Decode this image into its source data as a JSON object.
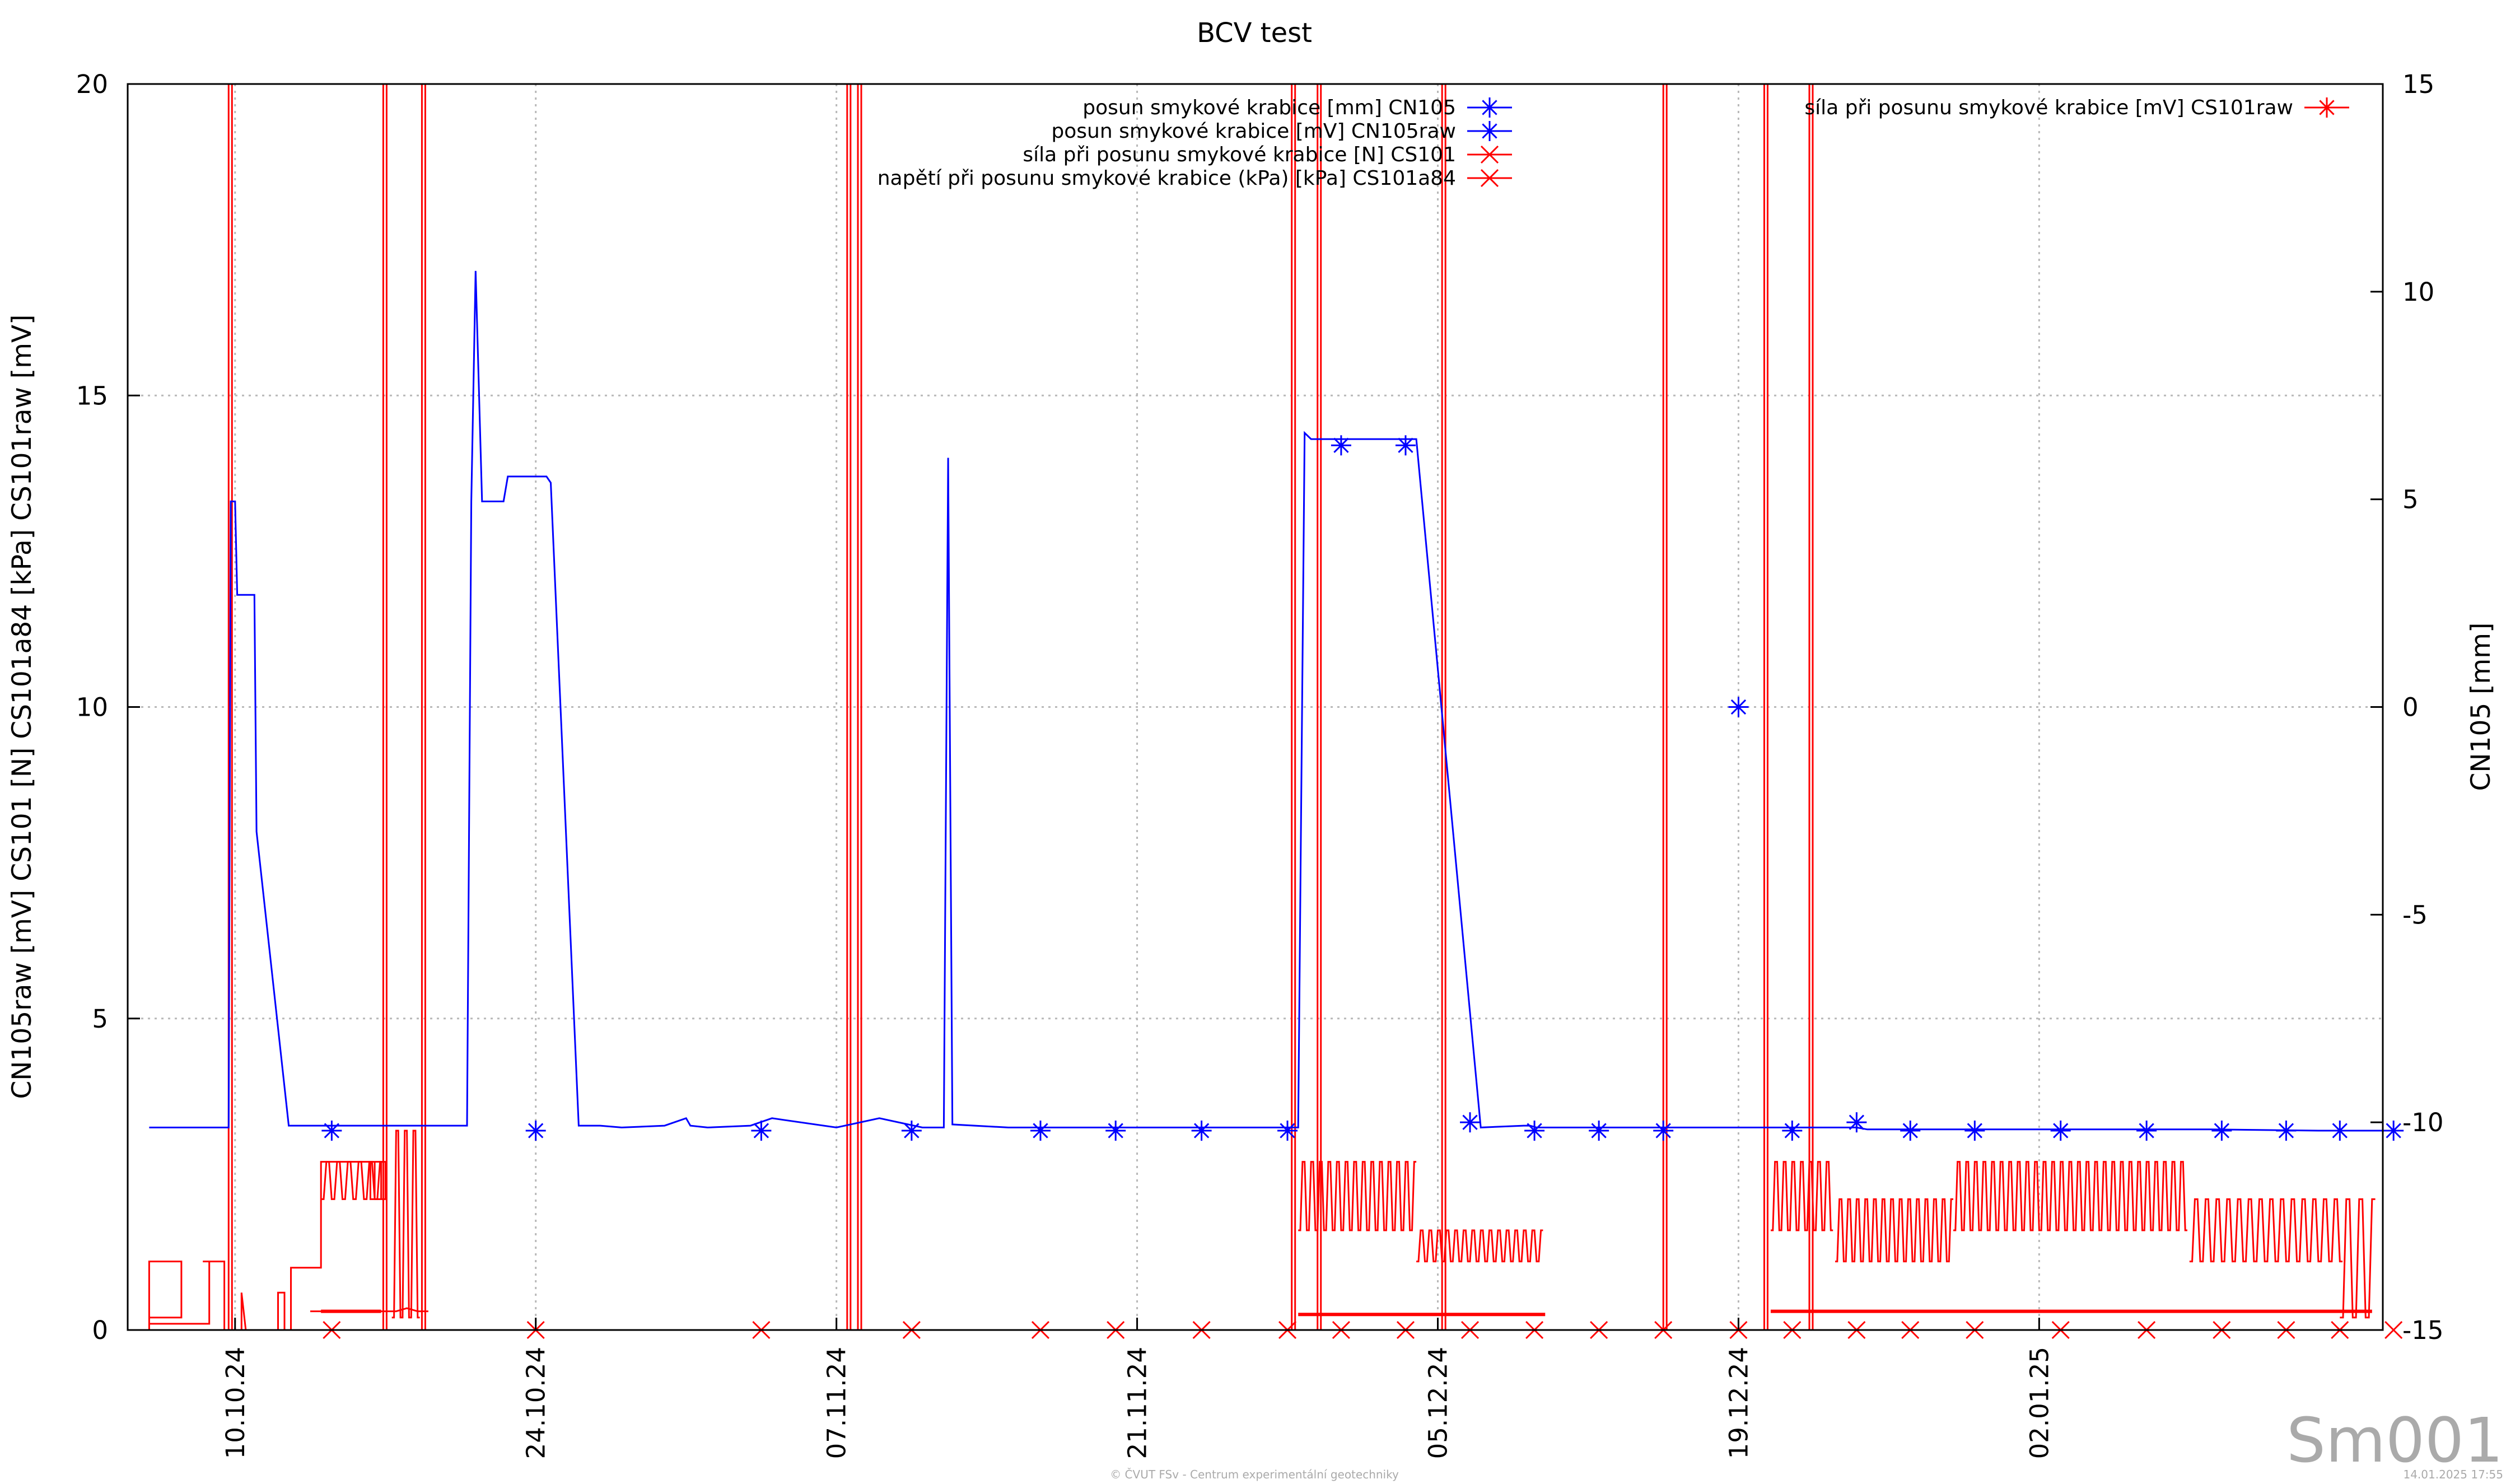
{
  "chart_data": {
    "type": "line",
    "title": "BCV test",
    "ylabel_left": "CN105raw [mV] CS101 [N] CS101a84 [kPa] CS101raw [mV]",
    "ylabel_right": "CN105 [mm]",
    "ylim_left": [
      0,
      20
    ],
    "ylim_right": [
      -15,
      15
    ],
    "yticks_left": [
      "0",
      "5",
      "10",
      "15",
      "20"
    ],
    "yticks_right": [
      "-15",
      "-10",
      "-5",
      "0",
      "5",
      "10",
      "15"
    ],
    "x_tick_labels": [
      "10.10.24",
      "24.10.24",
      "07.11.24",
      "21.11.24",
      "05.12.24",
      "19.12.24",
      "02.01.25"
    ],
    "x_range_days": [
      -5,
      100
    ],
    "grid": true,
    "legend_left": [
      {
        "label": "posun smykové krabice [mm] CN105",
        "color": "#0000ff",
        "marker": "asterisk"
      },
      {
        "label": "posun smykové krabice [mV] CN105raw",
        "color": "#0000ff",
        "marker": "asterisk"
      },
      {
        "label": "síla při posunu smykové krabice [N] CS101",
        "color": "#ff0000",
        "marker": "cross"
      },
      {
        "label": "napětí při posunu smykové krabice (kPa) [kPa] CS101a84",
        "color": "#ff0000",
        "marker": "cross"
      }
    ],
    "legend_right": [
      {
        "label": "síla při posunu smykové krabice [mV] CS101raw",
        "color": "#ff0000",
        "marker": "asterisk"
      }
    ],
    "series": [
      {
        "name": "posun smykové krabice [mV] CN105raw",
        "color": "#0000ff",
        "axis": "left",
        "x": [
          -4,
          -0.3,
          -0.2,
          0,
          0.1,
          0.9,
          1.0,
          2.5,
          2.6,
          2.8,
          3.0,
          3.2,
          3.6,
          5,
          8,
          10.8,
          11.0,
          11.2,
          11.5,
          11.7,
          12.5,
          12.7,
          14.5,
          14.7,
          16.0,
          17.0,
          18,
          20,
          21,
          21.2,
          22,
          24,
          25,
          28,
          30,
          32,
          33.0,
          33.2,
          33.4,
          36,
          36.5,
          37,
          38,
          41,
          44,
          48,
          49.5,
          49.8,
          50.1,
          50.5,
          51.0,
          51.5,
          52,
          55,
          58,
          60,
          60.3,
          60.6,
          61,
          63,
          66,
          71,
          74.5,
          75.0,
          75.5,
          76.0,
          76.5,
          77,
          82,
          87,
          92,
          97,
          100
        ],
        "y": [
          3.25,
          3.25,
          13.3,
          13.3,
          11.8,
          11.8,
          8.0,
          3.28,
          3.28,
          3.28,
          3.28,
          3.28,
          3.28,
          3.28,
          3.28,
          3.28,
          13.3,
          17.0,
          13.3,
          13.3,
          13.3,
          13.7,
          13.7,
          13.6,
          3.28,
          3.28,
          3.25,
          3.28,
          3.4,
          3.28,
          3.25,
          3.28,
          3.4,
          3.25,
          3.4,
          3.25,
          3.25,
          14.0,
          3.3,
          3.25,
          3.25,
          3.25,
          3.25,
          3.25,
          3.25,
          3.25,
          3.25,
          14.4,
          14.3,
          14.3,
          14.3,
          14.3,
          14.3,
          14.3,
          3.25,
          3.28,
          3.28,
          3.25,
          3.25,
          3.25,
          3.25,
          3.25,
          3.25,
          3.25,
          3.25,
          3.22,
          3.22,
          3.22,
          3.22,
          3.22,
          3.22,
          3.2,
          3.2
        ]
      },
      {
        "name": "posun smykové krabice [mm] CN105",
        "color": "#0000ff",
        "axis": "right",
        "marker_x": [
          4.5,
          14,
          24.5,
          31.5,
          37.5,
          41,
          45,
          49,
          51.5,
          54.5,
          57.5,
          60.5,
          63.5,
          66.5,
          70,
          72.5,
          75.5,
          78,
          81,
          85,
          89,
          92.5,
          95.5,
          98,
          100.5
        ],
        "marker_y": [
          -10.2,
          -10.2,
          -10.2,
          -10.2,
          -10.2,
          -10.2,
          -10.2,
          -10.2,
          6.3,
          6.3,
          -10.0,
          -10.2,
          -10.2,
          -10.2,
          0.0,
          -10.2,
          -10.0,
          -10.2,
          -10.2,
          -10.2,
          -10.2,
          -10.2,
          -10.2,
          -10.2,
          -10.2
        ]
      },
      {
        "name": "síla při posunu smykové krabice [N] CS101",
        "color": "#ff0000",
        "axis": "left",
        "x": [
          -4,
          -4,
          -2.5,
          -2.5,
          -4,
          -4,
          -1.2,
          -1.2,
          -1.5,
          -0.5,
          -0.5,
          0.3,
          0.3,
          0.5,
          2,
          2,
          2.3,
          2.3,
          2.6,
          2.6,
          4,
          4,
          6.5,
          6.5,
          7,
          7,
          6.3,
          6.3,
          6.8,
          6.8,
          6.3,
          6.3,
          6.8,
          6.8,
          6.3,
          6.3,
          7
        ],
        "y": [
          0,
          1.1,
          1.1,
          0.2,
          0.2,
          0.1,
          0.1,
          1.1,
          1.1,
          1.1,
          0,
          0,
          0.6,
          0,
          0,
          0.6,
          0.6,
          0,
          0,
          1.0,
          1.0,
          2.7,
          2.7,
          2.1,
          2.1,
          2.7,
          2.7,
          2.1,
          2.1,
          2.7,
          2.7,
          2.1,
          2.1,
          2.7,
          2.7,
          2.1,
          2.1
        ]
      },
      {
        "name": "napětí při posunu smykové krabice (kPa) [kPa] CS101a84",
        "color": "#ff0000",
        "axis": "left",
        "x": [
          3.5,
          7.5,
          8.0,
          8.5,
          9
        ],
        "y": [
          0.3,
          0.3,
          0.35,
          0.3,
          0.3
        ]
      },
      {
        "name": "síla při posunu smykové krabice [mV] CS101raw",
        "color": "#ff0000",
        "axis": "right",
        "marker_x": [
          4.5,
          14,
          24.5,
          31.5,
          37.5,
          41,
          45,
          49,
          51.5,
          54.5,
          57.5,
          60.5,
          63.5,
          66.5,
          70,
          72.5,
          75.5,
          78,
          81,
          85,
          89,
          92.5,
          95.5,
          98,
          100.5
        ],
        "marker_y": [
          -15,
          -15,
          -15,
          -15,
          -15,
          -15,
          -15,
          -15,
          -15,
          -15,
          -15,
          -15,
          -15,
          -15,
          -15,
          -15,
          -15,
          -15,
          -15,
          -15,
          -15,
          -15,
          -15,
          -15,
          -15
        ]
      }
    ]
  },
  "watermark": "Sm001",
  "footer_credit": "© ČVUT FSv - Centrum experimentální geotechniky",
  "footer_timestamp": "14.01.2025 17:55"
}
